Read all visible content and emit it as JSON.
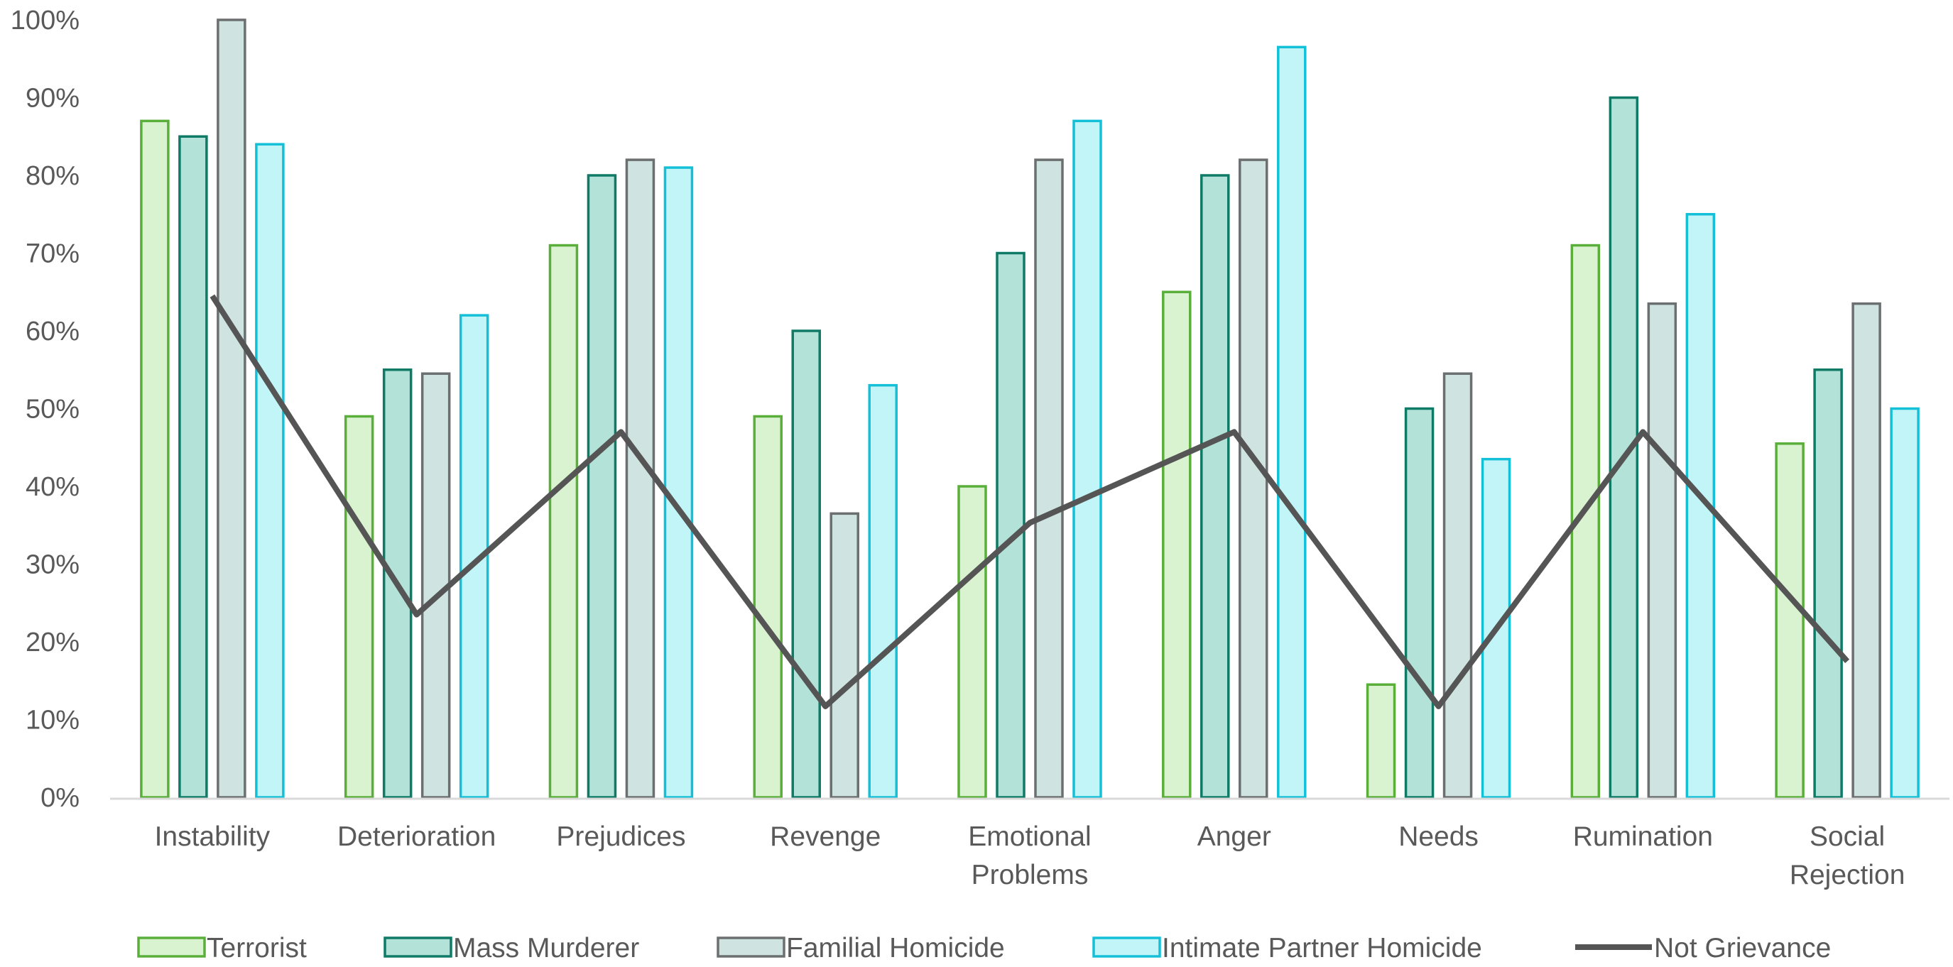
{
  "chart_data": {
    "type": "bar",
    "categories": [
      [
        "Instability"
      ],
      [
        "Deterioration"
      ],
      [
        "Prejudices"
      ],
      [
        "Revenge"
      ],
      [
        "Emotional",
        "Problems"
      ],
      [
        "Anger"
      ],
      [
        "Needs"
      ],
      [
        "Rumination"
      ],
      [
        "Social",
        "Rejection"
      ]
    ],
    "series": [
      {
        "name": "Terrorist",
        "kind": "bar",
        "fill": "#d9f2cf",
        "stroke": "#5aaf3b",
        "values": [
          87,
          49,
          71,
          49,
          40,
          65,
          14.5,
          71,
          45.5
        ]
      },
      {
        "name": "Mass Murderer",
        "kind": "bar",
        "fill": "#b3e3d8",
        "stroke": "#0f7a66",
        "values": [
          85,
          55,
          80,
          60,
          70,
          80,
          50,
          90,
          55
        ]
      },
      {
        "name": "Familial Homicide",
        "kind": "bar",
        "fill": "#cfe3e0",
        "stroke": "#6b6f70",
        "values": [
          100,
          54.5,
          82,
          36.5,
          82,
          82,
          54.5,
          63.5,
          63.5
        ]
      },
      {
        "name": "Intimate Partner Homicide",
        "kind": "bar",
        "fill": "#c2f5f7",
        "stroke": "#14c0d8",
        "values": [
          84,
          62,
          81,
          53,
          87,
          96.5,
          43.5,
          75,
          50
        ]
      },
      {
        "name": "Not Grievance",
        "kind": "line",
        "stroke": "#555555",
        "values": [
          64.5,
          23.5,
          47,
          11.7,
          35.3,
          47,
          11.7,
          47,
          17.5
        ]
      }
    ],
    "y_ticks": [
      "0%",
      "10%",
      "20%",
      "30%",
      "40%",
      "50%",
      "60%",
      "70%",
      "80%",
      "90%",
      "100%"
    ],
    "ylim": [
      0,
      100
    ],
    "grid": false,
    "legend_position": "bottom"
  }
}
